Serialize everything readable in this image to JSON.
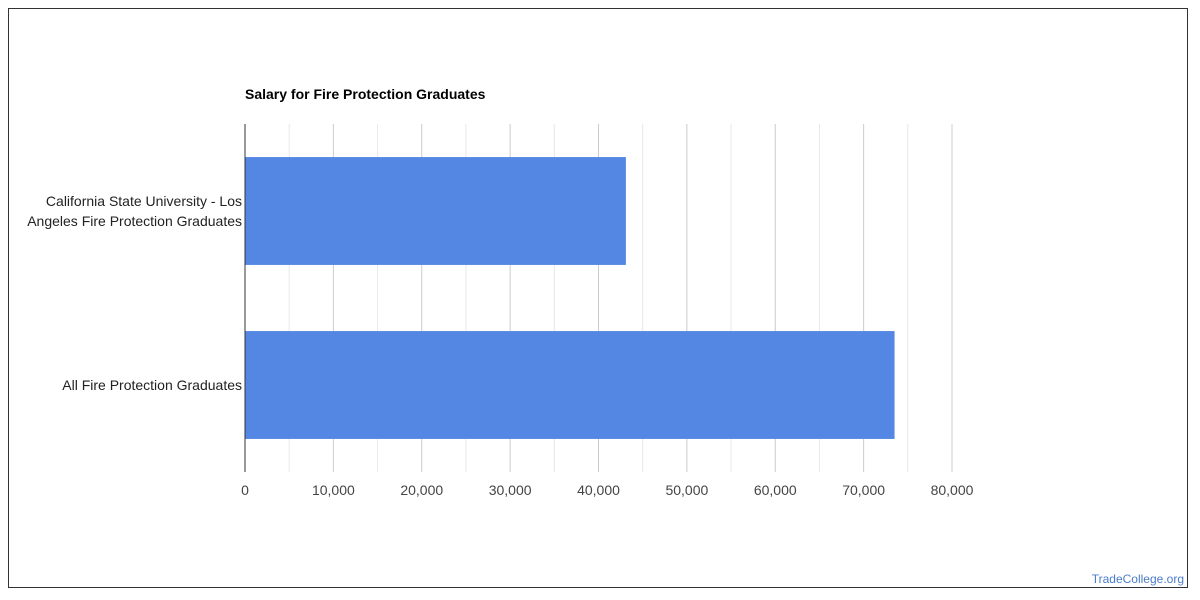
{
  "watermark": "TradeCollege.org",
  "chart_data": {
    "type": "bar",
    "orientation": "horizontal",
    "title": "Salary for Fire Protection Graduates",
    "xlabel": "",
    "ylabel": "",
    "categories": [
      [
        "California State University - Los",
        "Angeles Fire Protection Graduates"
      ],
      [
        "All Fire Protection Graduates"
      ]
    ],
    "values": [
      43100,
      73500
    ],
    "xlim": [
      0,
      80000
    ],
    "ticks": [
      0,
      10000,
      20000,
      30000,
      40000,
      50000,
      60000,
      70000,
      80000
    ],
    "tick_labels": [
      "0",
      "10,000",
      "20,000",
      "30,000",
      "40,000",
      "50,000",
      "60,000",
      "70,000",
      "80,000"
    ],
    "bar_color": "#5387e3",
    "grid": true,
    "legend": "none"
  }
}
